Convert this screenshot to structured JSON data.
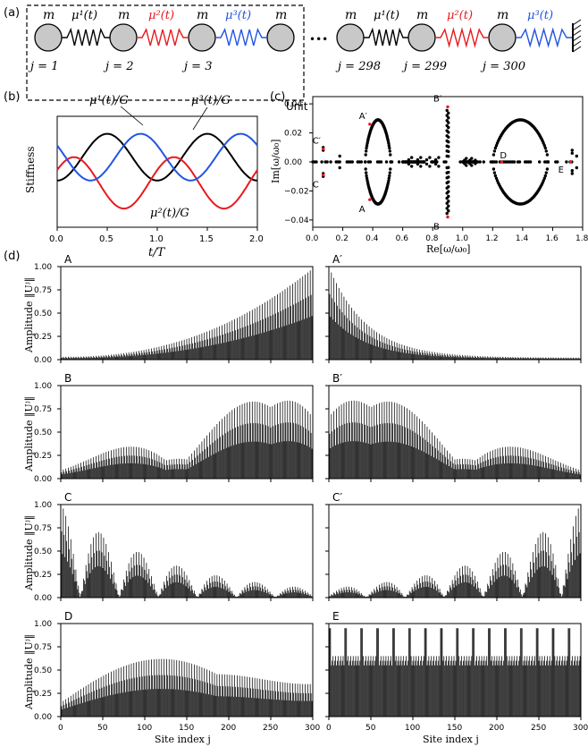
{
  "panel_labels": {
    "a": "(a)",
    "b": "(b)",
    "c": "(c)",
    "d": "(d)"
  },
  "chain": {
    "mass_label": "m",
    "springs": [
      "μ¹(t)",
      "μ²(t)",
      "μ³(t)",
      "μ¹(t)",
      "μ²(t)",
      "μ³(t)"
    ],
    "spring_colors": [
      "#000000",
      "#e8191e",
      "#2255e0",
      "#000000",
      "#e8191e",
      "#2255e0"
    ],
    "site_labels": [
      "j = 1",
      "j = 2",
      "j = 3",
      "j = 298",
      "j = 299",
      "j = 300"
    ],
    "unit_label": "Unit",
    "ellipsis": "•••"
  },
  "chart_data": [
    {
      "id": "b",
      "type": "line",
      "title": "",
      "xlabel": "t/T",
      "ylabel": "Stiffness",
      "xlim": [
        0,
        2
      ],
      "ylim": [
        0.4,
        1.35
      ],
      "xticks": [
        "0.0",
        "0.5",
        "1.0",
        "1.5",
        "2.0"
      ],
      "series": [
        {
          "name": "μ¹(t)/G",
          "color": "#000000",
          "mean": 1.0,
          "amp": 0.2,
          "phase_deg": 180
        },
        {
          "name": "μ²(t)/G",
          "color": "#e8191e",
          "mean": 0.78,
          "amp": 0.22,
          "phase_deg": 60
        },
        {
          "name": "μ³(t)/G",
          "color": "#2255e0",
          "mean": 1.0,
          "amp": 0.2,
          "phase_deg": -60
        }
      ]
    },
    {
      "id": "c",
      "type": "scatter",
      "xlabel": "Re[ω/ω₀]",
      "ylabel": "Im[ω/ω₀]",
      "xlim": [
        0.0,
        1.8
      ],
      "ylim": [
        -0.045,
        0.045
      ],
      "xticks": [
        "0.0",
        "0.2",
        "0.4",
        "0.6",
        "0.8",
        "1.0",
        "1.2",
        "1.4",
        "1.6",
        "1.8"
      ],
      "yticks": [
        "−0.04",
        "−0.02",
        "0.00",
        "0.02",
        "0.04"
      ],
      "loops": [
        {
          "x_start": 0.35,
          "x_end": 0.52,
          "peak_x": 0.42,
          "peak_im": 0.029
        },
        {
          "x_start": 1.2,
          "x_end": 1.57,
          "peak_x": 1.38,
          "peak_im": 0.029
        }
      ],
      "highlighted": [
        {
          "label": "A′",
          "re": 0.38,
          "im": 0.026
        },
        {
          "label": "A",
          "re": 0.38,
          "im": -0.026
        },
        {
          "label": "B′",
          "re": 0.9,
          "im": 0.038
        },
        {
          "label": "B",
          "re": 0.9,
          "im": -0.038
        },
        {
          "label": "C′",
          "re": 0.07,
          "im": 0.009
        },
        {
          "label": "C",
          "re": 0.07,
          "im": -0.009
        },
        {
          "label": "D",
          "re": 1.26,
          "im": 0.0
        },
        {
          "label": "E",
          "re": 1.72,
          "im": 0.0
        }
      ]
    },
    {
      "id": "d",
      "type": "bar",
      "xlabel": "Site index j",
      "ylabel": "Amplitude ‖Uʲ‖",
      "xlim": [
        0,
        300
      ],
      "ylim": [
        0,
        1.0
      ],
      "xticks": [
        "0",
        "50",
        "100",
        "150",
        "200",
        "250",
        "300"
      ],
      "yticks": [
        "0.00",
        "0.25",
        "0.50",
        "0.75",
        "1.00"
      ],
      "panels": [
        {
          "label": "A",
          "envelope": "growth"
        },
        {
          "label": "A′",
          "envelope": "decay"
        },
        {
          "label": "B",
          "envelope": "beat"
        },
        {
          "label": "B′",
          "envelope": "beat_rev"
        },
        {
          "label": "C",
          "envelope": "arches"
        },
        {
          "label": "C′",
          "envelope": "arches_rev"
        },
        {
          "label": "D",
          "envelope": "broad"
        },
        {
          "label": "E",
          "envelope": "comb"
        }
      ]
    }
  ]
}
